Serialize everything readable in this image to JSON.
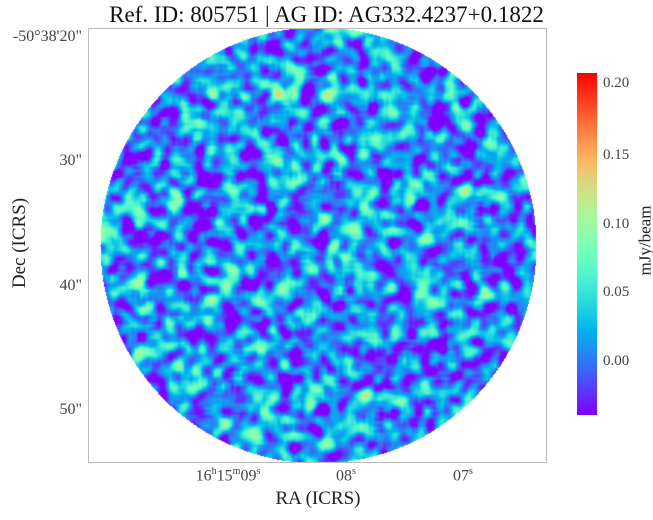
{
  "chart_data": {
    "type": "heatmap",
    "title": "Ref. ID: 805751 | AG ID: AG332.4237+0.1822",
    "xlabel": "RA (ICRS)",
    "ylabel": "Dec (ICRS)",
    "xticks": [
      {
        "h": "16",
        "m": "15",
        "s": "09",
        "label": "16h15m09s"
      },
      {
        "s": "08",
        "label": "08s"
      },
      {
        "s": "07",
        "label": "07s"
      }
    ],
    "yticks": [
      "-50°38'20\"",
      "30\"",
      "40\"",
      "50\""
    ],
    "colorbar": {
      "label": "mJy/beam",
      "ticks": [
        "0.20",
        "0.15",
        "0.10",
        "0.05",
        "0.00"
      ],
      "range": [
        -0.04,
        0.21
      ],
      "colormap": "rainbow"
    },
    "footprint": "circular",
    "grid": false
  }
}
